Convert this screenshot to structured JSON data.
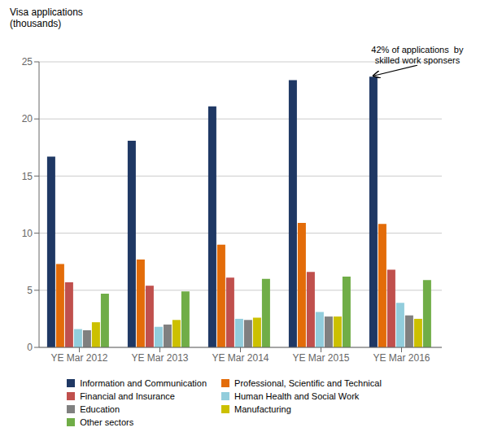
{
  "chart_data": {
    "type": "bar",
    "ylabel": "Visa applications\n(thousands)",
    "categories": [
      "YE Mar 2012",
      "YE Mar 2013",
      "YE Mar 2014",
      "YE Mar 2015",
      "YE Mar 2016"
    ],
    "series": [
      {
        "name": "Information and Communication",
        "color": "#1F3864",
        "values": [
          16.7,
          18.1,
          21.1,
          23.4,
          23.7
        ]
      },
      {
        "name": "Professional, Scientific and Technical",
        "color": "#E36C09",
        "values": [
          7.3,
          7.7,
          9.0,
          10.9,
          10.8
        ]
      },
      {
        "name": "Financial and Insurance",
        "color": "#C0504D",
        "values": [
          5.7,
          5.4,
          6.1,
          6.6,
          6.8
        ]
      },
      {
        "name": "Human Health and Social Work",
        "color": "#92CDDC",
        "values": [
          1.6,
          1.8,
          2.5,
          3.1,
          3.9
        ]
      },
      {
        "name": "Education",
        "color": "#808080",
        "values": [
          1.5,
          2.0,
          2.4,
          2.7,
          2.8
        ]
      },
      {
        "name": "Manufacturing",
        "color": "#CCC000",
        "values": [
          2.2,
          2.4,
          2.6,
          2.7,
          2.5
        ]
      },
      {
        "name": "Other sectors",
        "color": "#70AD47",
        "values": [
          4.7,
          4.9,
          6.0,
          6.2,
          5.9
        ]
      }
    ],
    "ylim": [
      0,
      25
    ],
    "yticks": [
      0,
      5,
      10,
      15,
      20,
      25
    ],
    "grid": true,
    "legend": "bottom",
    "annotations": [
      {
        "text": "42% of applications  by\nskilled work sponsers",
        "category": "YE Mar 2016",
        "series": "Information and Communication"
      }
    ]
  }
}
